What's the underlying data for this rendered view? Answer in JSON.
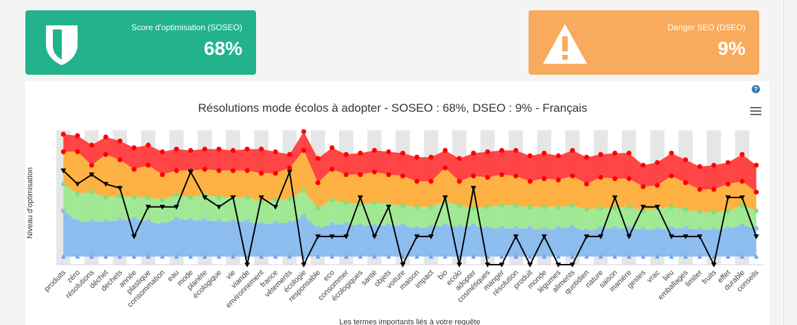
{
  "cards": {
    "soseo": {
      "label": "Score d'optimisation (SOSEO)",
      "value": "68%",
      "color": "#22b38c",
      "icon": "shield-icon"
    },
    "dseo": {
      "label": "Danger SEO (DSEO)",
      "value": "9%",
      "color": "#f8ab5c",
      "icon": "warning-triangle-icon"
    }
  },
  "chart_data": {
    "type": "area",
    "title": "Résolutions mode écolos à adopter - SOSEO : 68%, DSEO : 9% - Français",
    "ylabel": "Niveau d'optimisation",
    "xlabel": "Les termes importants liés à votre requête",
    "grid": "alternating vertical bands",
    "legend": "none",
    "colors": {
      "red": "#ff3b3b",
      "orange": "#ffae3a",
      "green": "#9de88f",
      "blue": "#88b9ee",
      "line": "#000000"
    },
    "categories": [
      "produits",
      "zéro",
      "résolutions",
      "déchet",
      "dechets",
      "année",
      "plastique",
      "consommation",
      "eau",
      "mode",
      "planète",
      "écologique",
      "vie",
      "viande",
      "environnement",
      "france",
      "vêtements",
      "écologie",
      "responsable",
      "eco",
      "consommer",
      "écologiques",
      "santé",
      "objets",
      "voiture",
      "maison",
      "impact",
      "bio",
      "ecolo",
      "adopter",
      "cosmétiques",
      "manger",
      "résolution",
      "produit",
      "monde",
      "légumes",
      "aliments",
      "quotidien",
      "nature",
      "saison",
      "manière",
      "gestes",
      "vrac",
      "lieu",
      "emballages",
      "limiter",
      "fruits",
      "effet",
      "durable",
      "conseils"
    ],
    "series": [
      {
        "name": "",
        "values": [
          97,
          96,
          89,
          95,
          92,
          87,
          89,
          84,
          86,
          85,
          86,
          86,
          85,
          86,
          86,
          84,
          82,
          99,
          79,
          87,
          82,
          83,
          85,
          84,
          83,
          80,
          80,
          85,
          79,
          83,
          84,
          85,
          85,
          81,
          83,
          81,
          85,
          80,
          82,
          83,
          83,
          74,
          76,
          83,
          78,
          73,
          74,
          76,
          82,
          74
        ]
      },
      {
        "name": "",
        "values": [
          84,
          84,
          74,
          82,
          78,
          71,
          74,
          67,
          70,
          70,
          71,
          70,
          70,
          70,
          68,
          68,
          72,
          85,
          61,
          71,
          67,
          67,
          69,
          67,
          66,
          62,
          62,
          72,
          62,
          66,
          65,
          67,
          66,
          62,
          64,
          63,
          66,
          60,
          65,
          64,
          64,
          58,
          59,
          66,
          61,
          56,
          56,
          60,
          62,
          54
        ]
      },
      {
        "name": "",
        "values": [
          60,
          53,
          54,
          50,
          51,
          50,
          50,
          48,
          52,
          50,
          52,
          50,
          50,
          50,
          47,
          48,
          49,
          55,
          42,
          48,
          46,
          45,
          46,
          45,
          44,
          43,
          43,
          47,
          44,
          42,
          43,
          44,
          44,
          43,
          43,
          43,
          44,
          41,
          42,
          42,
          43,
          40,
          42,
          43,
          41,
          39,
          39,
          40,
          44,
          40
        ]
      },
      {
        "name": "",
        "values": [
          40,
          32,
          32,
          32,
          33,
          34,
          32,
          30,
          34,
          33,
          33,
          32,
          32,
          32,
          30,
          31,
          31,
          36,
          27,
          30,
          30,
          29,
          29,
          29,
          29,
          27,
          28,
          29,
          28,
          29,
          27,
          27,
          27,
          27,
          26,
          27,
          28,
          25,
          27,
          27,
          27,
          26,
          26,
          27,
          27,
          26,
          26,
          27,
          29,
          27
        ]
      },
      {
        "name": "",
        "values": [
          6,
          6,
          6,
          6,
          6,
          6,
          6,
          6,
          6,
          6,
          6,
          6,
          6,
          6,
          6,
          6,
          6,
          6,
          6,
          6,
          6,
          6,
          6,
          6,
          6,
          6,
          6,
          6,
          6,
          6,
          6,
          6,
          6,
          6,
          6,
          6,
          6,
          6,
          6,
          6,
          6,
          6,
          6,
          6,
          6,
          6,
          6,
          6,
          6,
          6
        ]
      },
      {
        "name": "",
        "values": [
          70,
          60,
          67,
          60,
          57,
          21,
          43,
          43,
          43,
          69,
          50,
          43,
          50,
          0,
          50,
          43,
          69,
          0,
          21,
          21,
          21,
          50,
          21,
          43,
          0,
          21,
          21,
          50,
          0,
          57,
          0,
          0,
          21,
          0,
          21,
          0,
          0,
          21,
          21,
          50,
          21,
          43,
          43,
          21,
          21,
          21,
          0,
          50,
          50,
          21
        ]
      }
    ],
    "ylim": [
      0,
      100
    ]
  }
}
